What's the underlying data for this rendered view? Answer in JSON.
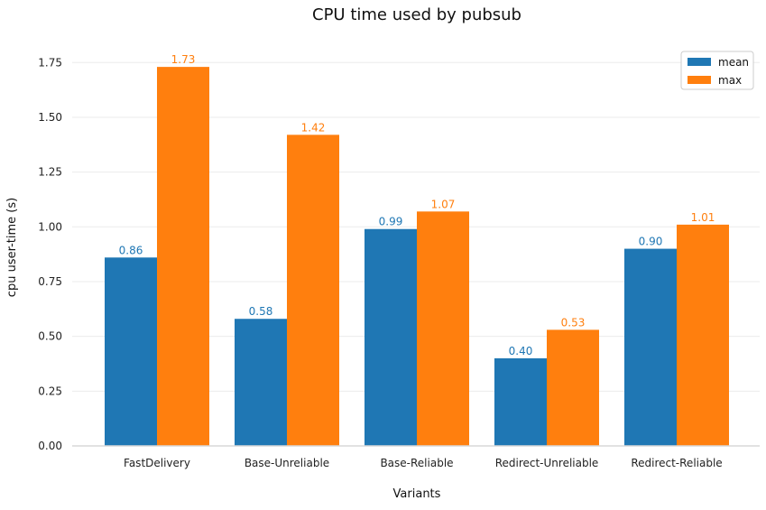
{
  "chart_data": {
    "type": "bar",
    "title": "CPU time used by pubsub",
    "xlabel": "Variants",
    "ylabel": "cpu user-time (s)",
    "ylim": [
      0,
      1.85
    ],
    "yticks": [
      "0.00",
      "0.25",
      "0.50",
      "0.75",
      "1.00",
      "1.25",
      "1.50",
      "1.75"
    ],
    "categories": [
      "FastDelivery",
      "Base-Unreliable",
      "Base-Reliable",
      "Redirect-Unreliable",
      "Redirect-Reliable"
    ],
    "series": [
      {
        "name": "mean",
        "color": "#1f77b4",
        "values": [
          0.86,
          0.58,
          0.99,
          0.4,
          0.9
        ],
        "labels": [
          "0.86",
          "0.58",
          "0.99",
          "0.40",
          "0.90"
        ]
      },
      {
        "name": "max",
        "color": "#ff7f0e",
        "values": [
          1.73,
          1.42,
          1.07,
          0.53,
          1.01
        ],
        "labels": [
          "1.73",
          "1.42",
          "1.07",
          "0.53",
          "1.01"
        ]
      }
    ],
    "grid": true,
    "legend_position": "top-right"
  }
}
